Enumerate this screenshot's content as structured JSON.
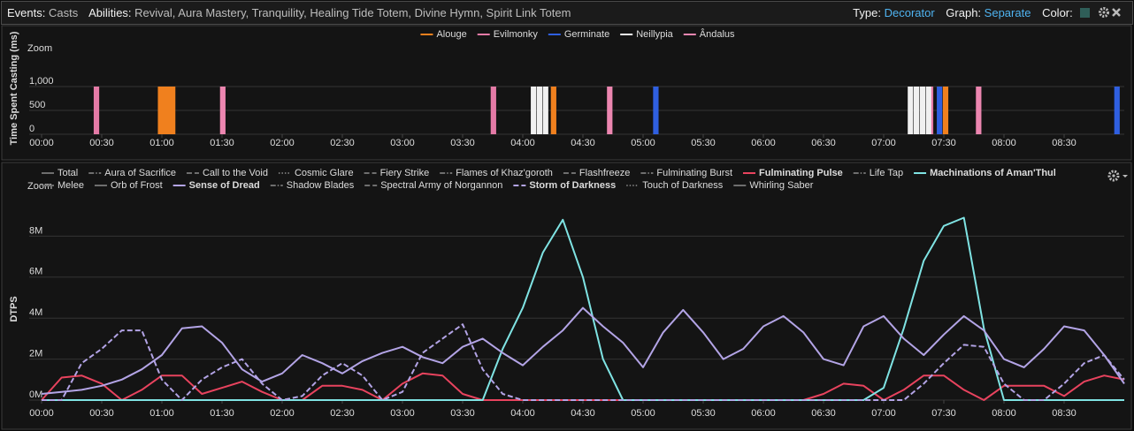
{
  "toolbar": {
    "events_label": "Events:",
    "events_value": "Casts",
    "abilities_label": "Abilities:",
    "abilities_value": "Revival, Aura Mastery, Tranquility, Healing Tide Totem, Divine Hymn, Spirit Link Totem",
    "type_label": "Type:",
    "type_value": "Decorator",
    "graph_label": "Graph:",
    "graph_value": "Separate",
    "color_label": "Color:"
  },
  "chart_data": [
    {
      "type": "bar",
      "zoom": "Zoom",
      "y_label": "Time Spent Casting (ms)",
      "xlim": [
        0,
        540
      ],
      "ylim": [
        0,
        1500
      ],
      "yticks": [
        0,
        500,
        {
          "value": 1000,
          "label": "1,000"
        }
      ],
      "grid": true,
      "xticks": [
        {
          "value": 0,
          "label": "00:00"
        },
        {
          "value": 30,
          "label": "00:30"
        },
        {
          "value": 60,
          "label": "01:00"
        },
        {
          "value": 90,
          "label": "01:30"
        },
        {
          "value": 120,
          "label": "02:00"
        },
        {
          "value": 150,
          "label": "02:30"
        },
        {
          "value": 180,
          "label": "03:00"
        },
        {
          "value": 210,
          "label": "03:30"
        },
        {
          "value": 240,
          "label": "04:00"
        },
        {
          "value": 270,
          "label": "04:30"
        },
        {
          "value": 300,
          "label": "05:00"
        },
        {
          "value": 330,
          "label": "05:30"
        },
        {
          "value": 360,
          "label": "06:00"
        },
        {
          "value": 390,
          "label": "06:30"
        },
        {
          "value": 420,
          "label": "07:00"
        },
        {
          "value": 450,
          "label": "07:30"
        },
        {
          "value": 480,
          "label": "08:00"
        },
        {
          "value": 510,
          "label": "08:30"
        }
      ],
      "series": [
        {
          "name": "Alouge",
          "color": "#f0801e",
          "x": [
            58,
            59.5,
            61,
            62.5,
            64,
            254,
            449.5
          ],
          "values": [
            1000,
            1000,
            1000,
            1000,
            1000,
            1000,
            1000
          ]
        },
        {
          "name": "Evilmonky",
          "color": "#e47aa6",
          "x": [
            26,
            224,
            442
          ],
          "values": [
            1000,
            1000,
            1000
          ]
        },
        {
          "name": "Germinate",
          "color": "#2f5fe0",
          "x": [
            305,
            446.5,
            535
          ],
          "values": [
            1000,
            1000,
            1000
          ]
        },
        {
          "name": "Neillypia",
          "color": "#f0f0f0",
          "x": [
            244,
            247,
            250,
            432,
            435,
            438,
            441
          ],
          "values": [
            1000,
            1000,
            1000,
            1000,
            1000,
            1000,
            1000
          ]
        },
        {
          "name": "Ândalus",
          "color": "#ec86b0",
          "x": [
            89,
            282,
            466
          ],
          "values": [
            1000,
            1000,
            1000
          ]
        }
      ]
    },
    {
      "type": "line",
      "zoom": "Zoom",
      "y_label": "DTPS",
      "xlim": [
        0,
        540
      ],
      "ylim": [
        0,
        10
      ],
      "yticks": [
        {
          "value": 0,
          "label": "0M"
        },
        {
          "value": 2,
          "label": "2M"
        },
        {
          "value": 4,
          "label": "4M"
        },
        {
          "value": 6,
          "label": "6M"
        },
        {
          "value": 8,
          "label": "8M"
        }
      ],
      "grid": true,
      "xticks": [
        {
          "value": 0,
          "label": "00:00"
        },
        {
          "value": 30,
          "label": "00:30"
        },
        {
          "value": 60,
          "label": "01:00"
        },
        {
          "value": 90,
          "label": "01:30"
        },
        {
          "value": 120,
          "label": "02:00"
        },
        {
          "value": 150,
          "label": "02:30"
        },
        {
          "value": 180,
          "label": "03:00"
        },
        {
          "value": 210,
          "label": "03:30"
        },
        {
          "value": 240,
          "label": "04:00"
        },
        {
          "value": 270,
          "label": "04:30"
        },
        {
          "value": 300,
          "label": "05:00"
        },
        {
          "value": 330,
          "label": "05:30"
        },
        {
          "value": 360,
          "label": "06:00"
        },
        {
          "value": 390,
          "label": "06:30"
        },
        {
          "value": 420,
          "label": "07:00"
        },
        {
          "value": 450,
          "label": "07:30"
        },
        {
          "value": 480,
          "label": "08:00"
        },
        {
          "value": 510,
          "label": "08:30"
        }
      ],
      "x": [
        0,
        10,
        20,
        30,
        40,
        50,
        60,
        70,
        80,
        90,
        100,
        110,
        120,
        130,
        140,
        150,
        160,
        170,
        180,
        190,
        200,
        210,
        220,
        230,
        240,
        250,
        260,
        270,
        280,
        290,
        300,
        310,
        320,
        330,
        340,
        350,
        360,
        370,
        380,
        390,
        400,
        410,
        420,
        430,
        440,
        450,
        460,
        470,
        480,
        490,
        500,
        510,
        520,
        530,
        540
      ],
      "series": [
        {
          "name": "Total",
          "dash": "solid",
          "visible": false
        },
        {
          "name": "Aura of Sacrifice",
          "dash": "dashdot",
          "visible": false
        },
        {
          "name": "Call to the Void",
          "dash": "dash",
          "visible": false
        },
        {
          "name": "Cosmic Glare",
          "dash": "dot",
          "visible": false
        },
        {
          "name": "Fiery Strike",
          "dash": "dash",
          "visible": false
        },
        {
          "name": "Flames of Khaz'goroth",
          "dash": "dashdot",
          "visible": false
        },
        {
          "name": "Flashfreeze",
          "dash": "dash",
          "visible": false
        },
        {
          "name": "Fulminating Burst",
          "dash": "dashdot",
          "visible": false
        },
        {
          "name": "Fulminating Pulse",
          "dash": "solid",
          "visible": true,
          "color": "#e8435e",
          "values": [
            0,
            1.1,
            1.2,
            0.8,
            0,
            0.5,
            1.2,
            1.2,
            0.3,
            0.6,
            0.9,
            0.4,
            0,
            0,
            0.7,
            0.7,
            0.5,
            0,
            0.8,
            1.3,
            1.2,
            0.3,
            0,
            0,
            0,
            0,
            0,
            0,
            0,
            0,
            0,
            0,
            0,
            0,
            0,
            0,
            0,
            0,
            0,
            0.3,
            0.8,
            0.7,
            0,
            0.5,
            1.2,
            1.2,
            0.5,
            0,
            0.7,
            0.7,
            0.7,
            0.2,
            0.9,
            1.2,
            1.0
          ]
        },
        {
          "name": "Life Tap",
          "dash": "dashdot",
          "visible": false
        },
        {
          "name": "Machinations of Aman'Thul",
          "dash": "solid",
          "visible": true,
          "color": "#7fe3e3",
          "values": [
            0,
            0,
            0,
            0,
            0,
            0,
            0,
            0,
            0,
            0,
            0,
            0,
            0,
            0,
            0,
            0,
            0,
            0,
            0,
            0,
            0,
            0,
            0,
            2.5,
            4.5,
            7.2,
            8.8,
            6.0,
            2.0,
            0,
            0,
            0,
            0,
            0,
            0,
            0,
            0,
            0,
            0,
            0,
            0,
            0,
            0.6,
            3.5,
            6.8,
            8.5,
            8.9,
            3.5,
            0,
            0,
            0,
            0,
            0,
            0,
            0
          ]
        },
        {
          "name": "Melee",
          "dash": "solid",
          "visible": false
        },
        {
          "name": "Orb of Frost",
          "dash": "solid",
          "visible": false
        },
        {
          "name": "Sense of Dread",
          "dash": "solid",
          "visible": true,
          "color": "#b3a4e6",
          "values": [
            0.3,
            0.4,
            0.5,
            0.7,
            1.0,
            1.5,
            2.2,
            3.5,
            3.6,
            2.8,
            1.5,
            0.9,
            1.3,
            2.2,
            1.8,
            1.3,
            1.9,
            2.3,
            2.6,
            2.1,
            1.8,
            2.6,
            3.0,
            2.3,
            1.7,
            2.6,
            3.4,
            4.5,
            3.6,
            2.8,
            1.6,
            3.3,
            4.4,
            3.3,
            2.0,
            2.5,
            3.6,
            4.1,
            3.3,
            2.0,
            1.7,
            3.6,
            4.1,
            3.0,
            2.2,
            3.2,
            4.1,
            3.4,
            2.0,
            1.6,
            2.5,
            3.6,
            3.4,
            2.2,
            0.8
          ]
        },
        {
          "name": "Shadow Blades",
          "dash": "dashdot",
          "visible": false
        },
        {
          "name": "Spectral Army of Norgannon",
          "dash": "dash",
          "visible": false
        },
        {
          "name": "Storm of Darkness",
          "dash": "dash",
          "visible": true,
          "color": "#b3a4e6",
          "values": [
            0,
            0,
            1.8,
            2.5,
            3.4,
            3.4,
            1.0,
            0,
            1.0,
            1.6,
            2.0,
            0.8,
            0,
            0.2,
            1.2,
            1.8,
            1.2,
            0,
            0.4,
            2.3,
            3.0,
            3.7,
            1.5,
            0.3,
            0,
            0,
            0,
            0,
            0,
            0,
            0,
            0,
            0,
            0,
            0,
            0,
            0,
            0,
            0,
            0,
            0,
            0,
            0,
            0,
            0.8,
            1.8,
            2.7,
            2.6,
            0.8,
            0,
            0,
            0.8,
            1.8,
            2.2,
            1.0
          ]
        },
        {
          "name": "Touch of Darkness",
          "dash": "dot",
          "visible": false
        },
        {
          "name": "Whirling Saber",
          "dash": "solid",
          "visible": false
        }
      ]
    }
  ]
}
